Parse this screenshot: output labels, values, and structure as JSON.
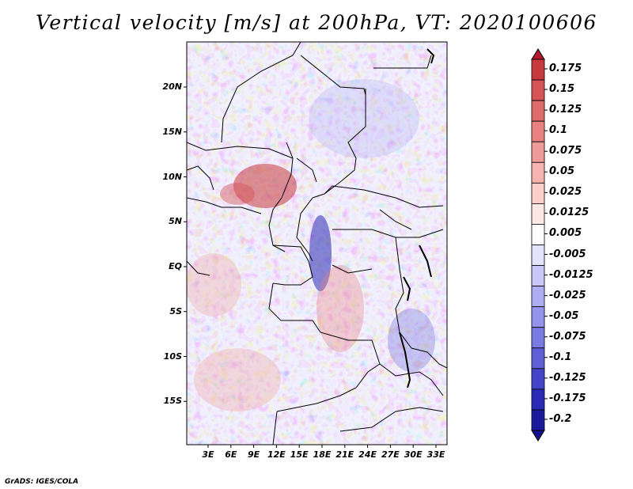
{
  "title": "Vertical velocity [m/s] at 200hPa, VT: 2020100606",
  "footer": "GrADS: IGES/COLA",
  "map": {
    "lat_labels": [
      "20N",
      "15N",
      "10N",
      "5N",
      "EQ",
      "5S",
      "10S",
      "15S"
    ],
    "lat_values": [
      20,
      15,
      10,
      5,
      0,
      -5,
      -10,
      -15
    ],
    "lon_labels": [
      "3E",
      "6E",
      "9E",
      "12E",
      "15E",
      "18E",
      "21E",
      "24E",
      "27E",
      "30E",
      "33E"
    ],
    "lon_values": [
      3,
      6,
      9,
      12,
      15,
      18,
      21,
      24,
      27,
      30,
      33
    ]
  },
  "colorbar": {
    "labels": [
      "0.175",
      "0.15",
      "0.125",
      "0.1",
      "0.075",
      "0.05",
      "0.025",
      "0.0125",
      "0.005",
      "-0.005",
      "-0.0125",
      "-0.025",
      "-0.05",
      "-0.075",
      "-0.1",
      "-0.125",
      "-0.175",
      "-0.2"
    ],
    "colors": [
      "#b2182b",
      "#c63a3e",
      "#d55556",
      "#e06b6b",
      "#e98181",
      "#f09a98",
      "#f6b4b0",
      "#fbcfca",
      "#fde8e4",
      "#ffffff",
      "#e3e3ff",
      "#c8c8fb",
      "#aeaef5",
      "#9494ed",
      "#7a7ae2",
      "#5f5fd6",
      "#4444c6",
      "#2a2ab4",
      "#1a1a9a",
      "#12128a"
    ]
  }
}
